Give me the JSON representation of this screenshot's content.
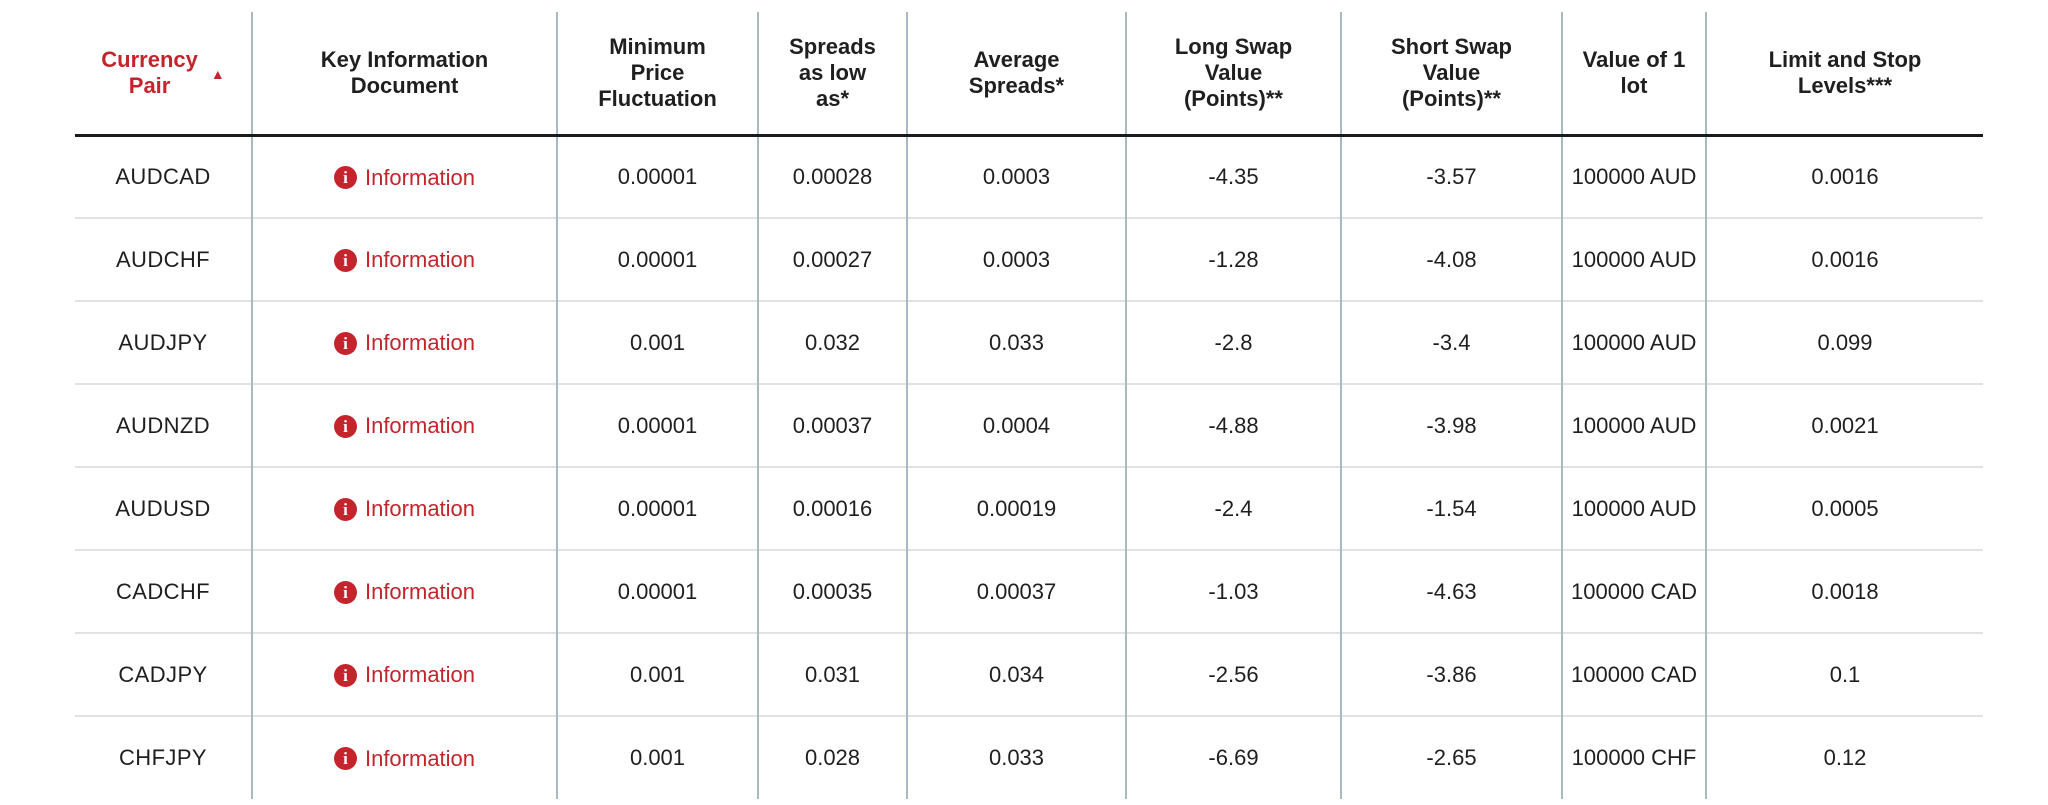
{
  "colors": {
    "accent_red": "#c4242c",
    "text_color": "#1f1f1f",
    "grid_vertical": "#aab9c0",
    "grid_horizontal": "#e2e2e2",
    "header_underline": "#1b1b1b",
    "page_bg": "#ffffff"
  },
  "table": {
    "sort_icon": "▲",
    "info_icon_glyph": "i",
    "info_label": "Information",
    "columns": [
      {
        "label": "Currency\nPair",
        "sort_direction": "ascending"
      },
      {
        "label": "Key Information\nDocument"
      },
      {
        "label": "Minimum\nPrice\nFluctuation"
      },
      {
        "label": "Spreads\nas low\nas*"
      },
      {
        "label": "Average\nSpreads*"
      },
      {
        "label": "Long Swap\nValue\n(Points)**"
      },
      {
        "label": "Short Swap\nValue\n(Points)**"
      },
      {
        "label": "Value of 1\nlot"
      },
      {
        "label": "Limit and Stop\nLevels***"
      }
    ],
    "rows": [
      {
        "pair": "AUDCAD",
        "min_fluctuation": "0.00001",
        "spread_low": "0.00028",
        "avg_spread": "0.0003",
        "long_swap": "-4.35",
        "short_swap": "-3.57",
        "lot_value": "100000 AUD",
        "limit_stop": "0.0016"
      },
      {
        "pair": "AUDCHF",
        "min_fluctuation": "0.00001",
        "spread_low": "0.00027",
        "avg_spread": "0.0003",
        "long_swap": "-1.28",
        "short_swap": "-4.08",
        "lot_value": "100000 AUD",
        "limit_stop": "0.0016"
      },
      {
        "pair": "AUDJPY",
        "min_fluctuation": "0.001",
        "spread_low": "0.032",
        "avg_spread": "0.033",
        "long_swap": "-2.8",
        "short_swap": "-3.4",
        "lot_value": "100000 AUD",
        "limit_stop": "0.099"
      },
      {
        "pair": "AUDNZD",
        "min_fluctuation": "0.00001",
        "spread_low": "0.00037",
        "avg_spread": "0.0004",
        "long_swap": "-4.88",
        "short_swap": "-3.98",
        "lot_value": "100000 AUD",
        "limit_stop": "0.0021"
      },
      {
        "pair": "AUDUSD",
        "min_fluctuation": "0.00001",
        "spread_low": "0.00016",
        "avg_spread": "0.00019",
        "long_swap": "-2.4",
        "short_swap": "-1.54",
        "lot_value": "100000 AUD",
        "limit_stop": "0.0005"
      },
      {
        "pair": "CADCHF",
        "min_fluctuation": "0.00001",
        "spread_low": "0.00035",
        "avg_spread": "0.00037",
        "long_swap": "-1.03",
        "short_swap": "-4.63",
        "lot_value": "100000 CAD",
        "limit_stop": "0.0018"
      },
      {
        "pair": "CADJPY",
        "min_fluctuation": "0.001",
        "spread_low": "0.031",
        "avg_spread": "0.034",
        "long_swap": "-2.56",
        "short_swap": "-3.86",
        "lot_value": "100000 CAD",
        "limit_stop": "0.1"
      },
      {
        "pair": "CHFJPY",
        "min_fluctuation": "0.001",
        "spread_low": "0.028",
        "avg_spread": "0.033",
        "long_swap": "-6.69",
        "short_swap": "-2.65",
        "lot_value": "100000 CHF",
        "limit_stop": "0.12"
      }
    ]
  }
}
